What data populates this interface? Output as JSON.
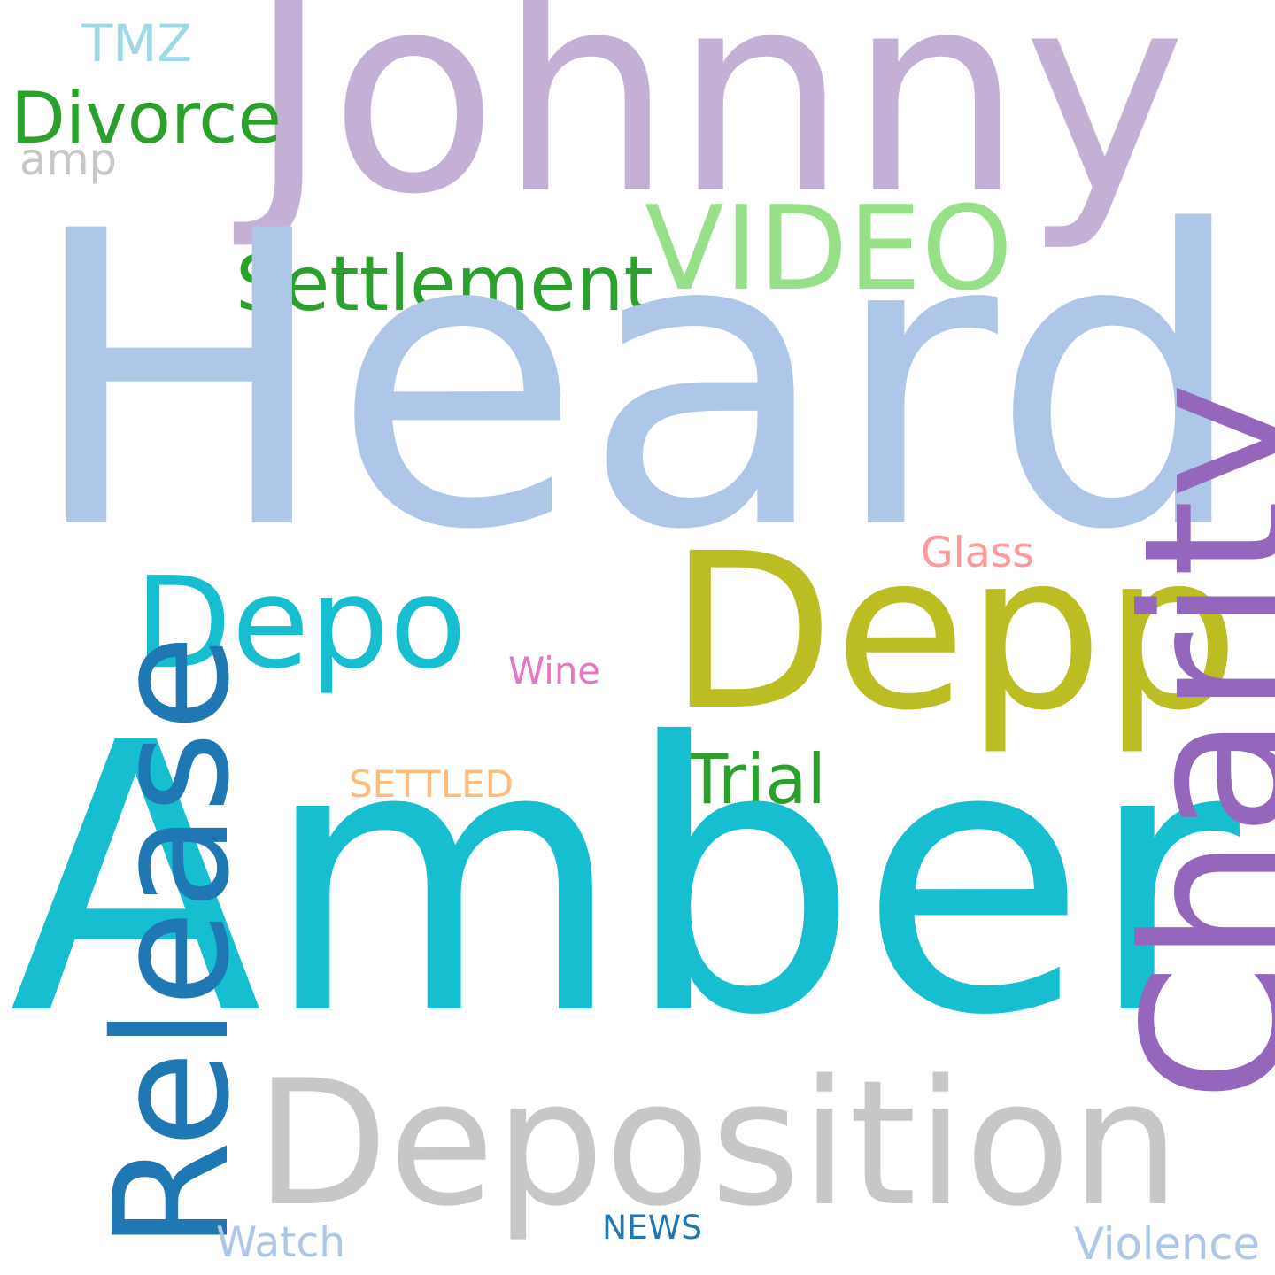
{
  "words": [
    {
      "text": "Johnny",
      "color": "#c5b0d5"
    },
    {
      "text": "TMZ",
      "color": "#9edae5"
    },
    {
      "text": "Divorce",
      "color": "#2ca02c"
    },
    {
      "text": "amp",
      "color": "#c7c7c7"
    },
    {
      "text": "VIDEO",
      "color": "#98df8a"
    },
    {
      "text": "Settlement",
      "color": "#2ca02c"
    },
    {
      "text": "Heard",
      "color": "#aec7e8"
    },
    {
      "text": "Glass",
      "color": "#ff9896"
    },
    {
      "text": "Depo",
      "color": "#17becf"
    },
    {
      "text": "Depp",
      "color": "#bcbd22"
    },
    {
      "text": "Wine",
      "color": "#e377c2"
    },
    {
      "text": "SETTLED",
      "color": "#ffbb78"
    },
    {
      "text": "Trial",
      "color": "#2ca02c"
    },
    {
      "text": "Amber",
      "color": "#17becf"
    },
    {
      "text": "Charity",
      "color": "#9467bd"
    },
    {
      "text": "Release",
      "color": "#1f77b4"
    },
    {
      "text": "Deposition",
      "color": "#c7c7c7"
    },
    {
      "text": "Watch",
      "color": "#aec7e8"
    },
    {
      "text": "NEWS",
      "color": "#1f77b4"
    },
    {
      "text": "Violence",
      "color": "#aec7e8"
    }
  ]
}
